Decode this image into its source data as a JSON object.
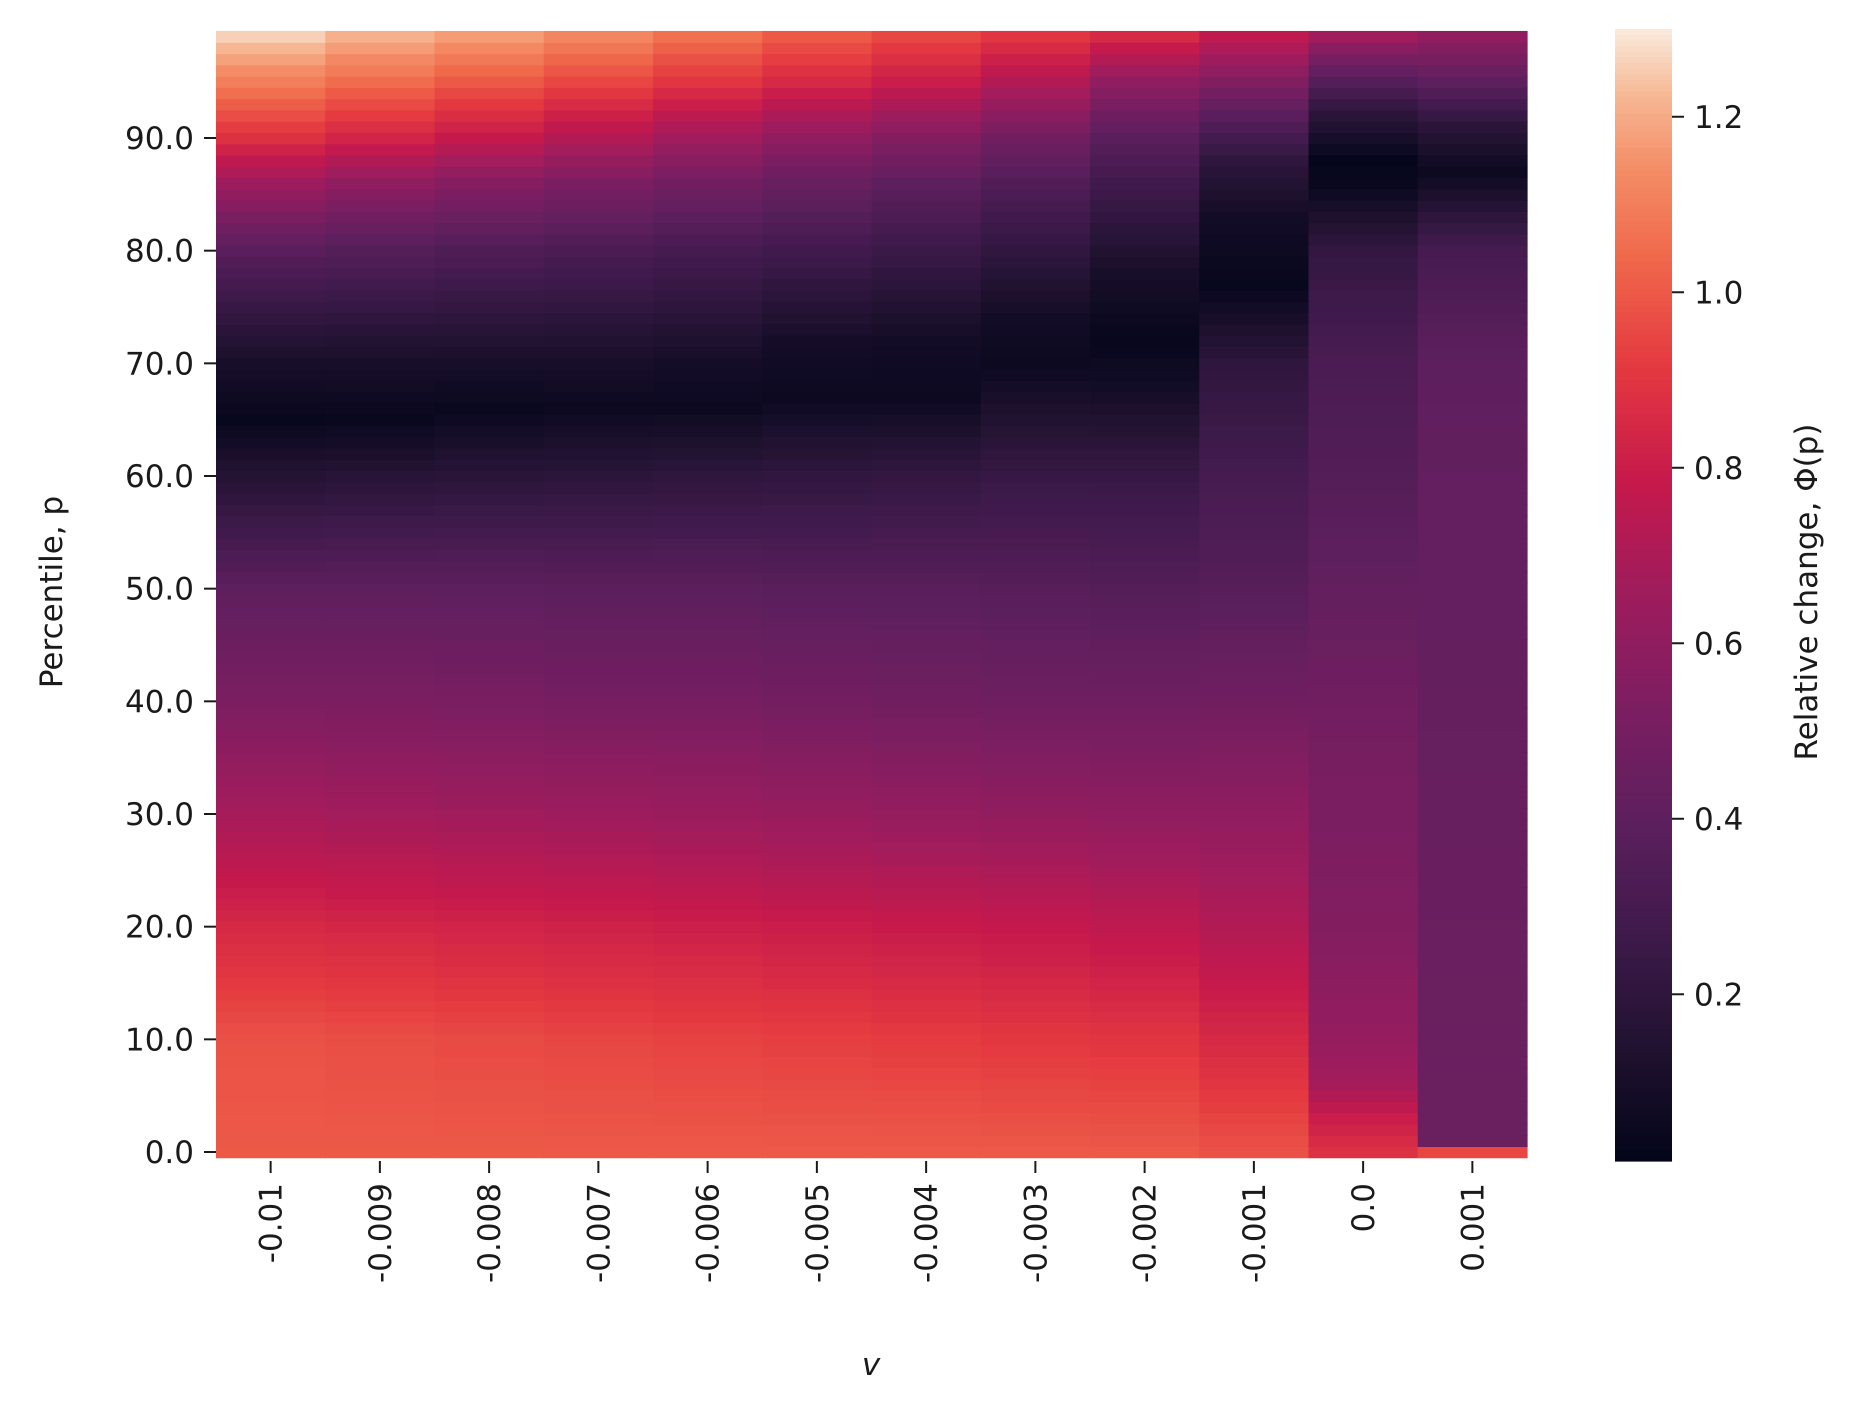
{
  "chart_data": {
    "type": "heatmap",
    "xlabel": "v",
    "ylabel": "Percentile, p",
    "x": [
      "-0.01",
      "-0.009",
      "-0.008",
      "-0.007",
      "-0.006",
      "-0.005",
      "-0.004",
      "-0.003",
      "-0.002",
      "-0.001",
      "0.0",
      "0.001"
    ],
    "y_ticks": [
      "0.0",
      "10.0",
      "20.0",
      "30.0",
      "40.0",
      "50.0",
      "60.0",
      "70.0",
      "80.0",
      "90.0"
    ],
    "y_range": [
      0,
      99
    ],
    "colorbar": {
      "label": "Relative change, Φ(p)",
      "ticks": [
        "0.2",
        "0.4",
        "0.6",
        "0.8",
        "1.0",
        "1.2"
      ],
      "range": [
        0.01,
        1.3
      ],
      "colormap": "rocket"
    },
    "columns": [
      {
        "v": "-0.01",
        "profile": [
          [
            0,
            1.0
          ],
          [
            10,
            0.98
          ],
          [
            20,
            0.85
          ],
          [
            30,
            0.68
          ],
          [
            40,
            0.52
          ],
          [
            50,
            0.4
          ],
          [
            60,
            0.16
          ],
          [
            65,
            0.03
          ],
          [
            70,
            0.1
          ],
          [
            80,
            0.38
          ],
          [
            86,
            0.65
          ],
          [
            90,
            0.88
          ],
          [
            95,
            1.1
          ],
          [
            99,
            1.26
          ]
        ]
      },
      {
        "v": "-0.009",
        "profile": [
          [
            0,
            1.0
          ],
          [
            10,
            0.97
          ],
          [
            20,
            0.84
          ],
          [
            30,
            0.67
          ],
          [
            40,
            0.52
          ],
          [
            50,
            0.4
          ],
          [
            60,
            0.17
          ],
          [
            65,
            0.04
          ],
          [
            70,
            0.1
          ],
          [
            80,
            0.36
          ],
          [
            86,
            0.6
          ],
          [
            90,
            0.83
          ],
          [
            95,
            1.05
          ],
          [
            99,
            1.21
          ]
        ]
      },
      {
        "v": "-0.008",
        "profile": [
          [
            0,
            1.0
          ],
          [
            10,
            0.96
          ],
          [
            20,
            0.83
          ],
          [
            30,
            0.66
          ],
          [
            40,
            0.51
          ],
          [
            50,
            0.4
          ],
          [
            60,
            0.18
          ],
          [
            66,
            0.04
          ],
          [
            70,
            0.1
          ],
          [
            80,
            0.34
          ],
          [
            86,
            0.56
          ],
          [
            90,
            0.78
          ],
          [
            95,
            1.0
          ],
          [
            99,
            1.17
          ]
        ]
      },
      {
        "v": "-0.007",
        "profile": [
          [
            0,
            1.0
          ],
          [
            10,
            0.95
          ],
          [
            20,
            0.82
          ],
          [
            30,
            0.65
          ],
          [
            40,
            0.5
          ],
          [
            50,
            0.39
          ],
          [
            60,
            0.19
          ],
          [
            66,
            0.05
          ],
          [
            70,
            0.1
          ],
          [
            80,
            0.32
          ],
          [
            86,
            0.52
          ],
          [
            90,
            0.72
          ],
          [
            95,
            0.95
          ],
          [
            99,
            1.12
          ]
        ]
      },
      {
        "v": "-0.006",
        "profile": [
          [
            0,
            1.0
          ],
          [
            10,
            0.94
          ],
          [
            20,
            0.81
          ],
          [
            30,
            0.64
          ],
          [
            40,
            0.5
          ],
          [
            50,
            0.39
          ],
          [
            60,
            0.2
          ],
          [
            66,
            0.05
          ],
          [
            70,
            0.09
          ],
          [
            80,
            0.3
          ],
          [
            86,
            0.48
          ],
          [
            90,
            0.66
          ],
          [
            95,
            0.9
          ],
          [
            99,
            1.06
          ]
        ]
      },
      {
        "v": "-0.005",
        "profile": [
          [
            0,
            1.0
          ],
          [
            10,
            0.93
          ],
          [
            20,
            0.8
          ],
          [
            30,
            0.63
          ],
          [
            40,
            0.49
          ],
          [
            50,
            0.38
          ],
          [
            60,
            0.21
          ],
          [
            67,
            0.05
          ],
          [
            72,
            0.09
          ],
          [
            80,
            0.28
          ],
          [
            86,
            0.44
          ],
          [
            90,
            0.6
          ],
          [
            95,
            0.85
          ],
          [
            99,
            1.0
          ]
        ]
      },
      {
        "v": "-0.004",
        "profile": [
          [
            0,
            1.0
          ],
          [
            10,
            0.92
          ],
          [
            20,
            0.79
          ],
          [
            30,
            0.62
          ],
          [
            40,
            0.48
          ],
          [
            50,
            0.38
          ],
          [
            60,
            0.22
          ],
          [
            67,
            0.05
          ],
          [
            72,
            0.08
          ],
          [
            80,
            0.25
          ],
          [
            86,
            0.4
          ],
          [
            90,
            0.55
          ],
          [
            95,
            0.8
          ],
          [
            99,
            0.95
          ]
        ]
      },
      {
        "v": "-0.003",
        "profile": [
          [
            0,
            1.0
          ],
          [
            10,
            0.91
          ],
          [
            20,
            0.78
          ],
          [
            30,
            0.61
          ],
          [
            40,
            0.47
          ],
          [
            50,
            0.37
          ],
          [
            60,
            0.24
          ],
          [
            70,
            0.05
          ],
          [
            74,
            0.08
          ],
          [
            80,
            0.21
          ],
          [
            86,
            0.35
          ],
          [
            90,
            0.48
          ],
          [
            95,
            0.72
          ],
          [
            99,
            0.9
          ]
        ]
      },
      {
        "v": "-0.002",
        "profile": [
          [
            0,
            1.0
          ],
          [
            10,
            0.9
          ],
          [
            20,
            0.76
          ],
          [
            30,
            0.6
          ],
          [
            40,
            0.47
          ],
          [
            50,
            0.36
          ],
          [
            60,
            0.24
          ],
          [
            68,
            0.08
          ],
          [
            72,
            0.03
          ],
          [
            78,
            0.1
          ],
          [
            86,
            0.28
          ],
          [
            90,
            0.38
          ],
          [
            95,
            0.6
          ],
          [
            99,
            0.85
          ]
        ]
      },
      {
        "v": "-0.001",
        "profile": [
          [
            0,
            0.98
          ],
          [
            10,
            0.85
          ],
          [
            20,
            0.72
          ],
          [
            30,
            0.6
          ],
          [
            40,
            0.48
          ],
          [
            50,
            0.37
          ],
          [
            60,
            0.3
          ],
          [
            70,
            0.2
          ],
          [
            77,
            0.03
          ],
          [
            83,
            0.08
          ],
          [
            88,
            0.2
          ],
          [
            92,
            0.38
          ],
          [
            96,
            0.6
          ],
          [
            99,
            0.76
          ]
        ]
      },
      {
        "v": "0.0",
        "profile": [
          [
            0,
            0.88
          ],
          [
            3,
            0.8
          ],
          [
            6,
            0.68
          ],
          [
            10,
            0.62
          ],
          [
            20,
            0.55
          ],
          [
            30,
            0.52
          ],
          [
            40,
            0.48
          ],
          [
            50,
            0.42
          ],
          [
            60,
            0.36
          ],
          [
            70,
            0.32
          ],
          [
            80,
            0.22
          ],
          [
            86,
            0.04
          ],
          [
            88,
            0.02
          ],
          [
            92,
            0.18
          ],
          [
            96,
            0.42
          ],
          [
            99,
            0.66
          ]
        ]
      },
      {
        "v": "0.001",
        "profile": [
          [
            0,
            0.95
          ],
          [
            1,
            0.45
          ],
          [
            10,
            0.45
          ],
          [
            20,
            0.45
          ],
          [
            30,
            0.44
          ],
          [
            40,
            0.43
          ],
          [
            50,
            0.42
          ],
          [
            60,
            0.42
          ],
          [
            70,
            0.4
          ],
          [
            80,
            0.3
          ],
          [
            87,
            0.05
          ],
          [
            91,
            0.18
          ],
          [
            95,
            0.4
          ],
          [
            99,
            0.6
          ]
        ]
      }
    ]
  }
}
